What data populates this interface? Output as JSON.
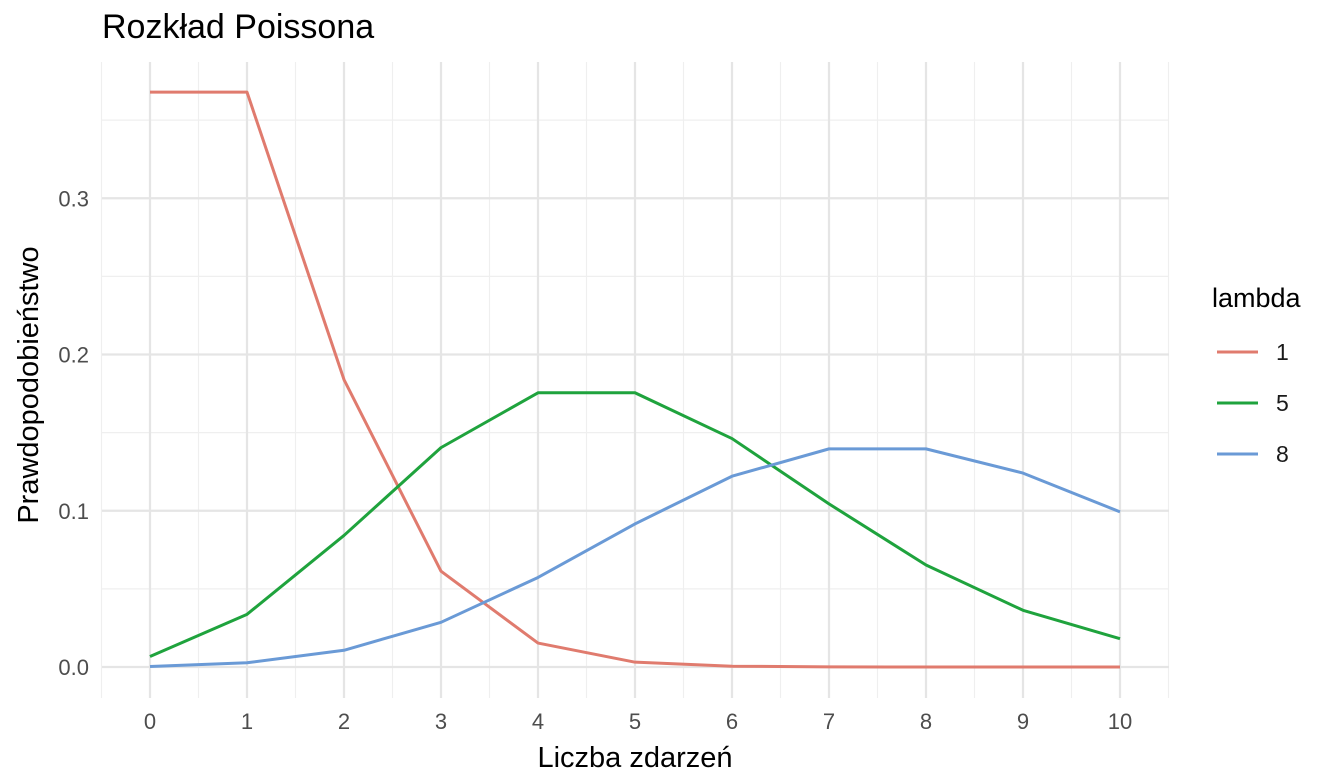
{
  "chart_data": {
    "type": "line",
    "title": "Rozkład Poissona",
    "xlabel": "Liczba zdarzeń",
    "ylabel": "Prawdopodobieństwo",
    "x": [
      0,
      1,
      2,
      3,
      4,
      5,
      6,
      7,
      8,
      9,
      10
    ],
    "xlim": [
      0,
      10
    ],
    "ylim": [
      0,
      0.368
    ],
    "x_ticks": [
      0,
      1,
      2,
      3,
      4,
      5,
      6,
      7,
      8,
      9,
      10
    ],
    "x_tick_labels": [
      "0",
      "1",
      "2",
      "3",
      "4",
      "5",
      "6",
      "7",
      "8",
      "9",
      "10"
    ],
    "y_ticks": [
      0,
      0.1,
      0.2,
      0.3
    ],
    "y_tick_labels": [
      "0.0",
      "0.1",
      "0.2",
      "0.3"
    ],
    "grid": true,
    "legend": {
      "title": "lambda",
      "position": "right"
    },
    "series": [
      {
        "name": "1",
        "color": "#e07b6e",
        "values": [
          0.3679,
          0.3679,
          0.1839,
          0.0613,
          0.0153,
          0.0031,
          0.0005,
          0.0001,
          0.0,
          0.0,
          0.0
        ]
      },
      {
        "name": "5",
        "color": "#1fa33d",
        "values": [
          0.0067,
          0.0337,
          0.0842,
          0.1404,
          0.1755,
          0.1755,
          0.1462,
          0.1044,
          0.0653,
          0.0363,
          0.0181
        ]
      },
      {
        "name": "8",
        "color": "#6a9ad6",
        "values": [
          0.0003,
          0.0027,
          0.0107,
          0.0286,
          0.0573,
          0.0916,
          0.1221,
          0.1396,
          0.1396,
          0.1241,
          0.0993
        ]
      }
    ]
  }
}
